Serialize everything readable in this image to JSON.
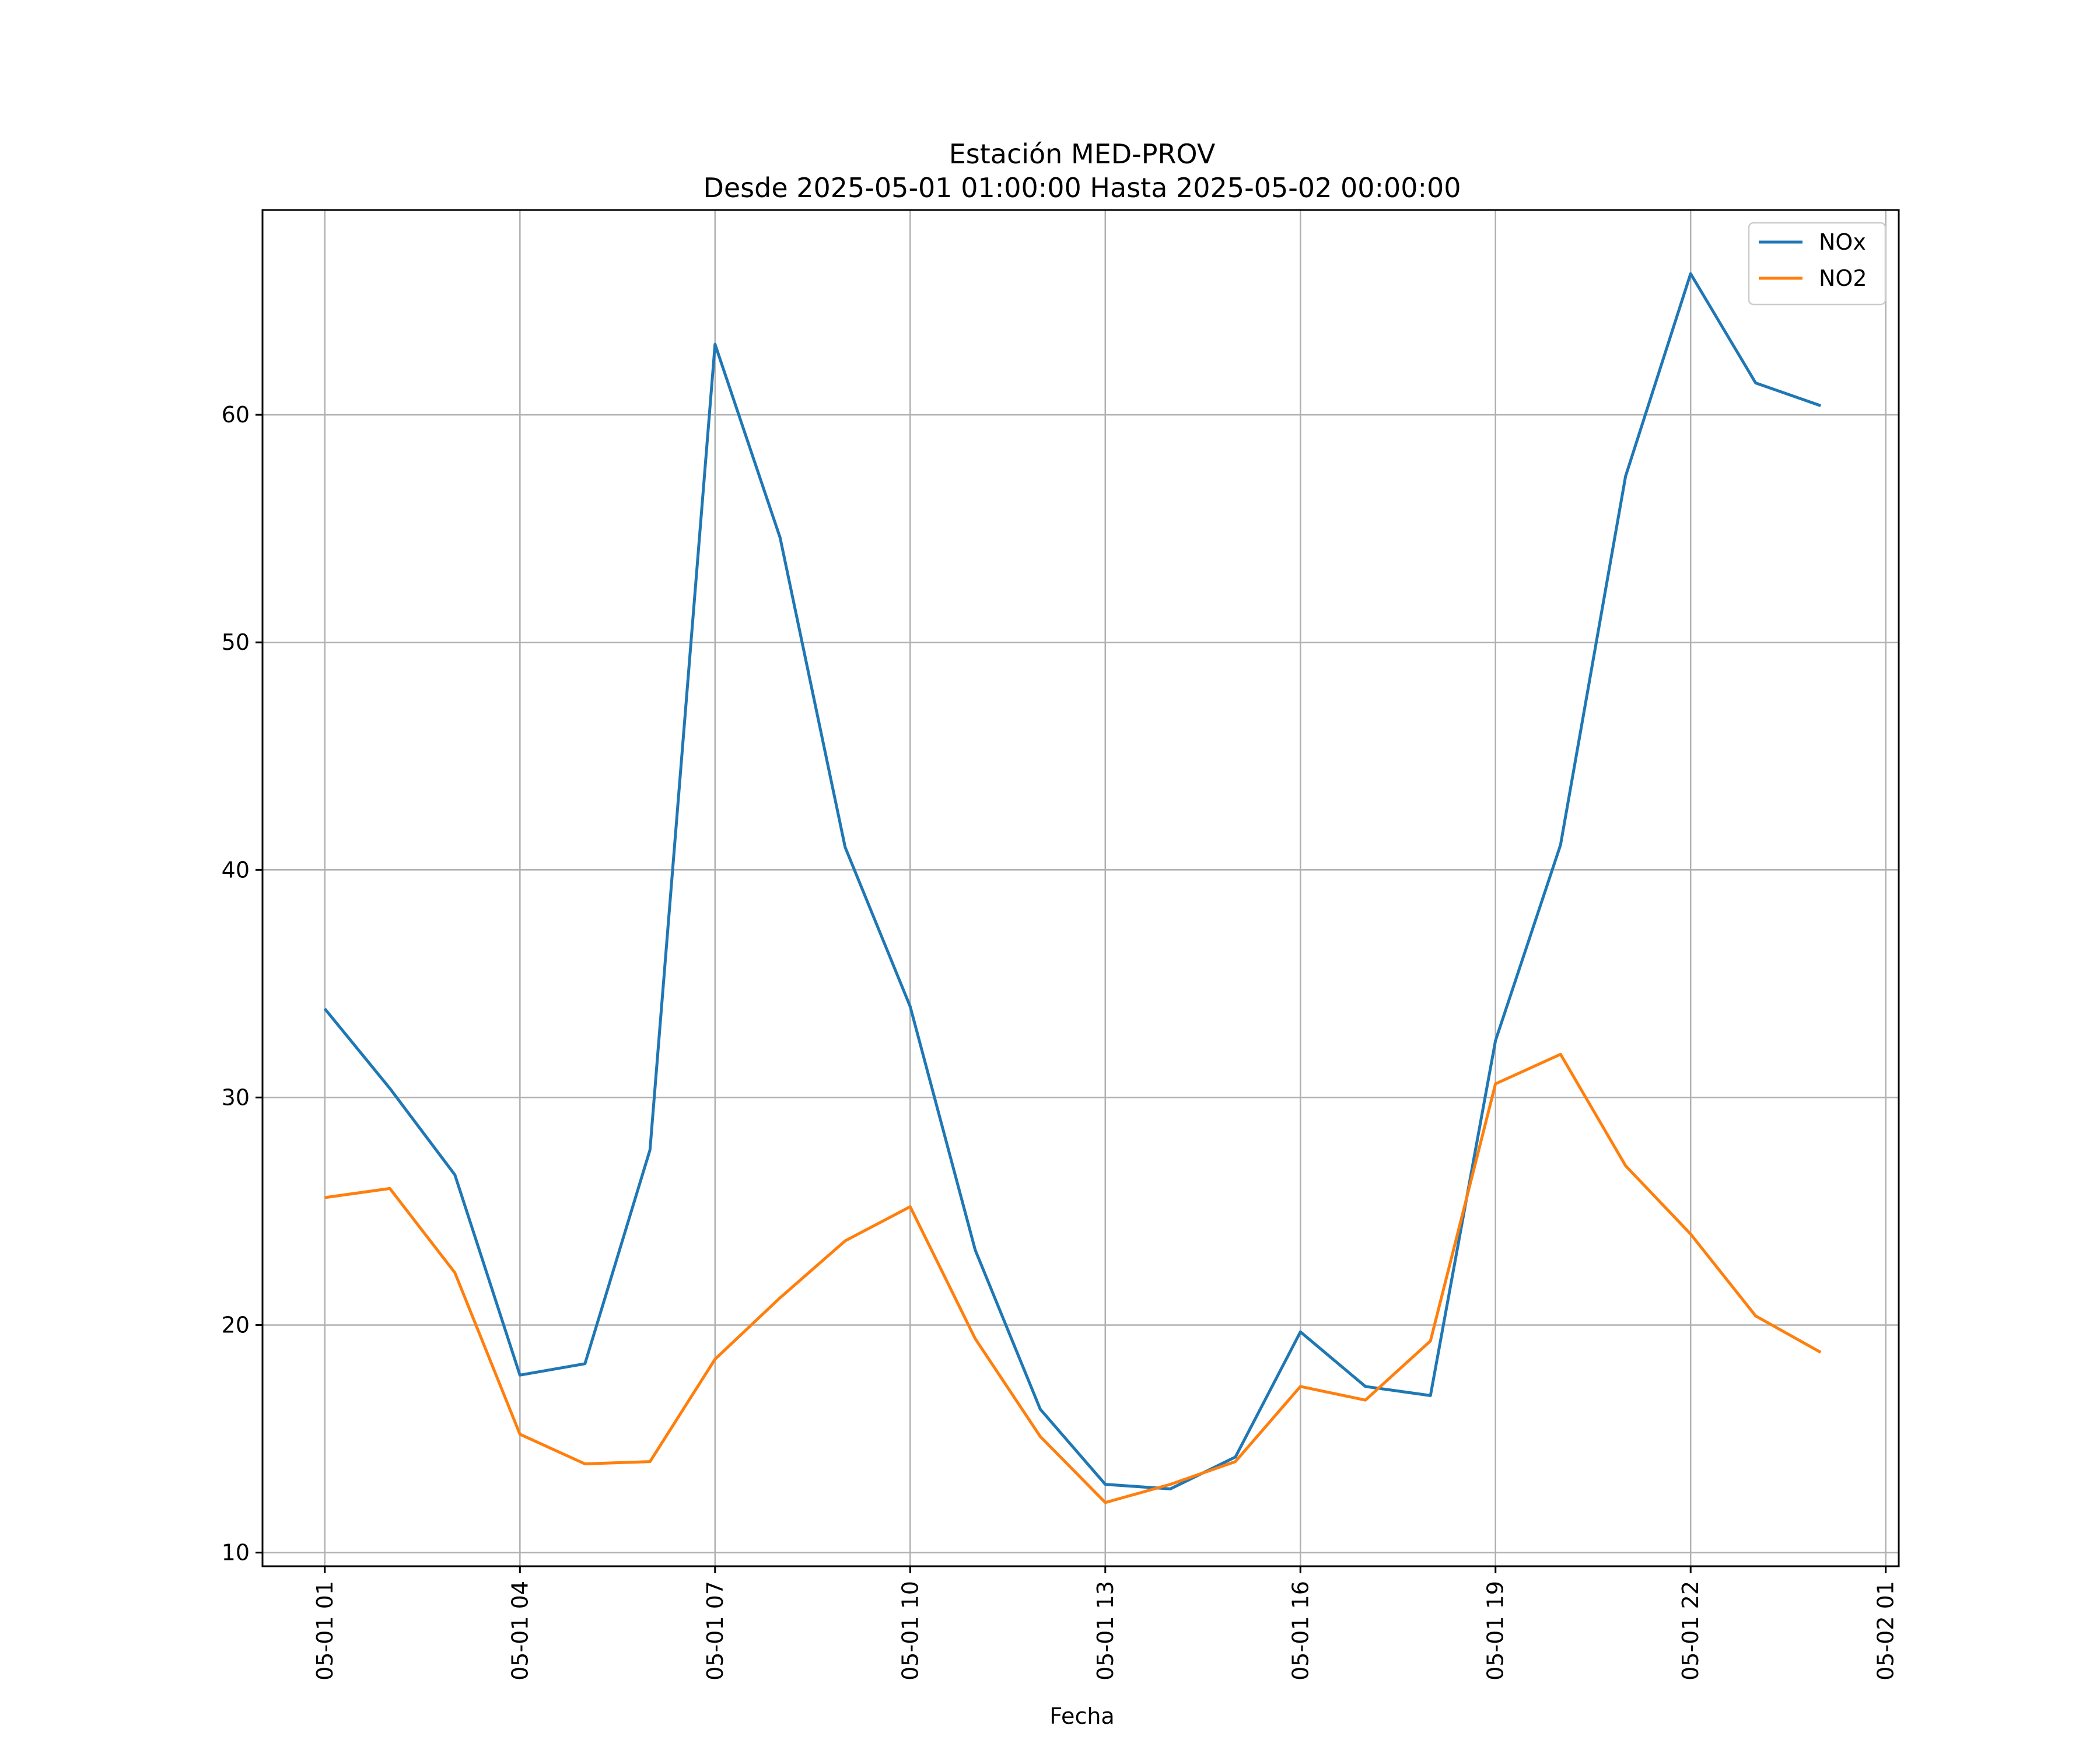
{
  "chart_data": {
    "type": "line",
    "title": "Estación MED-PROV",
    "subtitle": "Desde 2025-05-01 01:00:00 Hasta 2025-05-02 00:00:00",
    "xlabel": "Fecha",
    "ylabel": "",
    "x_tick_labels": [
      "05-01 01",
      "05-01 04",
      "05-01 07",
      "05-01 10",
      "05-01 13",
      "05-01 16",
      "05-01 19",
      "05-01 22",
      "05-02 01"
    ],
    "x_tick_hours": [
      1,
      4,
      7,
      10,
      13,
      16,
      19,
      22,
      25
    ],
    "x_hours": [
      1,
      2,
      3,
      4,
      5,
      6,
      7,
      8,
      9,
      10,
      11,
      12,
      13,
      14,
      15,
      16,
      17,
      18,
      19,
      20,
      21,
      22,
      23,
      24
    ],
    "y_ticks": [
      10,
      20,
      30,
      40,
      50,
      60
    ],
    "xlim": [
      0.0417,
      25.2
    ],
    "ylim": [
      9.4,
      69.0
    ],
    "grid": true,
    "legend_position": "top-right",
    "series": [
      {
        "name": "NOx",
        "color": "#1f77b4",
        "values": [
          33.9,
          30.4,
          26.6,
          17.8,
          18.3,
          27.7,
          63.1,
          54.6,
          41.0,
          34.0,
          23.3,
          16.3,
          13.0,
          12.8,
          14.2,
          19.7,
          17.3,
          16.9,
          32.5,
          41.1,
          57.3,
          66.2,
          61.4,
          60.4
        ]
      },
      {
        "name": "NO2",
        "color": "#ff7f0e",
        "values": [
          25.6,
          26.0,
          22.3,
          15.2,
          13.9,
          14.0,
          18.5,
          21.2,
          23.7,
          25.2,
          19.4,
          15.1,
          12.2,
          13.0,
          14.0,
          17.3,
          16.7,
          19.3,
          30.6,
          31.9,
          27.0,
          24.0,
          20.4,
          18.8
        ]
      }
    ]
  }
}
